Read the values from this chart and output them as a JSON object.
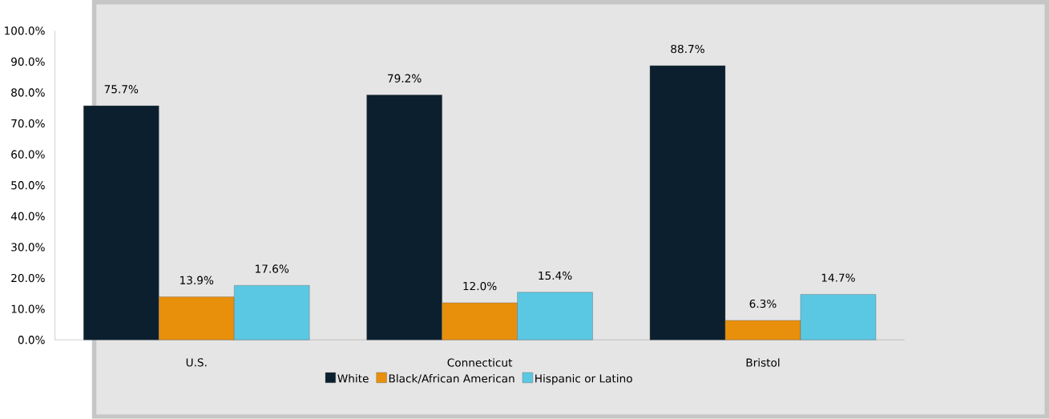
{
  "chart_data": {
    "type": "bar",
    "categories": [
      "U.S.",
      "Connecticut",
      "Bristol"
    ],
    "series": [
      {
        "name": "White",
        "color": "#0b1f2e",
        "values": [
          75.7,
          79.2,
          88.7
        ],
        "value_labels": [
          "75.7%",
          "79.2%",
          "88.7%"
        ]
      },
      {
        "name": "Black/African American",
        "color": "#e8900c",
        "values": [
          13.9,
          12.0,
          6.3
        ],
        "value_labels": [
          "13.9%",
          "12.0%",
          "6.3%"
        ]
      },
      {
        "name": "Hispanic or Latino",
        "color": "#5bc8e3",
        "values": [
          17.6,
          15.4,
          14.7
        ],
        "value_labels": [
          "17.6%",
          "15.4%",
          "14.7%"
        ]
      }
    ],
    "ylim": [
      0,
      100
    ],
    "yticks": [
      {
        "value": 0,
        "label": "0.0%"
      },
      {
        "value": 10,
        "label": "10.0%"
      },
      {
        "value": 20,
        "label": "20.0%"
      },
      {
        "value": 30,
        "label": "30.0%"
      },
      {
        "value": 40,
        "label": "40.0%"
      },
      {
        "value": 50,
        "label": "50.0%"
      },
      {
        "value": 60,
        "label": "60.0%"
      },
      {
        "value": 70,
        "label": "70.0%"
      },
      {
        "value": 80,
        "label": "80.0%"
      },
      {
        "value": 90,
        "label": "90.0%"
      },
      {
        "value": 100,
        "label": "100.0%"
      }
    ],
    "legend": "bottom",
    "grid": false
  }
}
